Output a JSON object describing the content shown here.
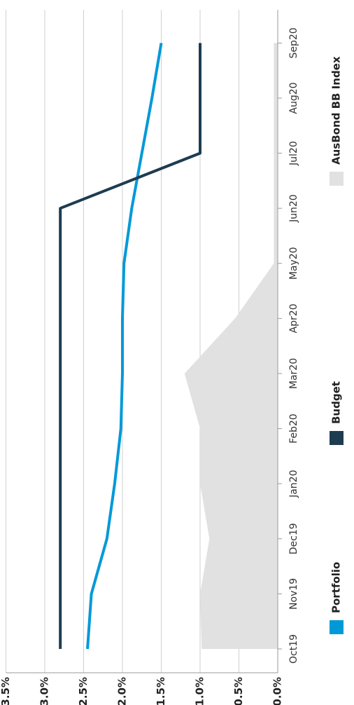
{
  "chart_data": {
    "type": "line",
    "orientation": "rotated-90-clockwise",
    "categories": [
      "Oct19",
      "Nov19",
      "Dec19",
      "Jan20",
      "Feb20",
      "Mar20",
      "Apr20",
      "May20",
      "Jun20",
      "Jul20",
      "Aug20",
      "Sep20"
    ],
    "ylim": [
      0,
      3.5
    ],
    "y_ticks": [
      "0.0%",
      "0.5%",
      "1.0%",
      "1.5%",
      "2.0%",
      "2.5%",
      "3.0%",
      "3.5%"
    ],
    "grid": true,
    "legend_placement": "bottom",
    "series": [
      {
        "name": "Portfolio",
        "kind": "line",
        "color": "#0099d8",
        "values": [
          2.45,
          2.4,
          2.2,
          2.1,
          2.02,
          2.0,
          2.0,
          1.98,
          1.88,
          1.75,
          1.62,
          1.5
        ]
      },
      {
        "name": "Budget",
        "kind": "line",
        "color": "#1d3c50",
        "values": [
          2.8,
          2.8,
          2.8,
          2.8,
          2.8,
          2.8,
          2.8,
          2.8,
          2.8,
          1.0,
          1.0,
          1.0
        ]
      },
      {
        "name": "AusBond BB Index",
        "kind": "area",
        "color": "#e1e1e1",
        "values": [
          0.98,
          1.0,
          0.88,
          1.0,
          1.0,
          1.2,
          0.55,
          0.05,
          0.05,
          0.05,
          0.05,
          0.05
        ]
      }
    ]
  }
}
